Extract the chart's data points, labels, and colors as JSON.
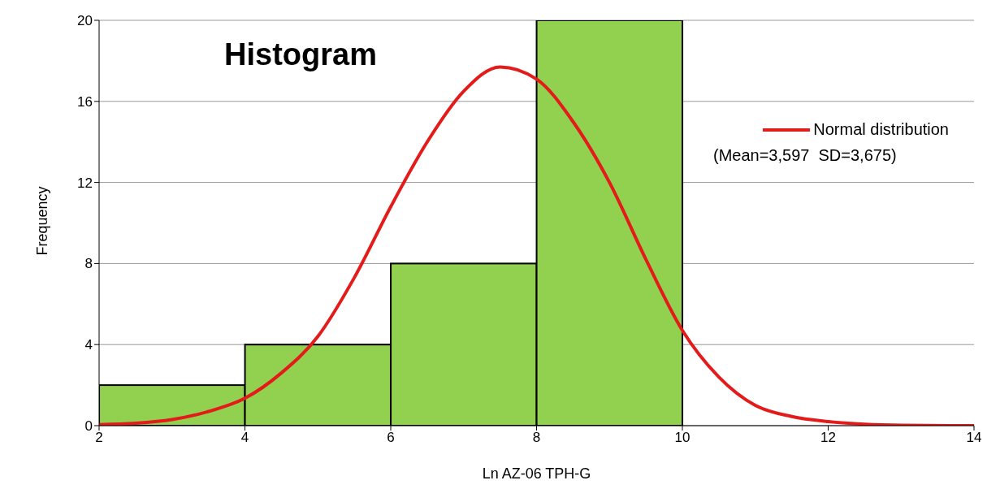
{
  "chart_data": {
    "type": "histogram",
    "title": "Histogram",
    "xlabel": "Ln AZ-06 TPH-G",
    "ylabel": "Frequency",
    "xlim": [
      2,
      14
    ],
    "xticks": [
      2,
      4,
      6,
      8,
      10,
      12,
      14
    ],
    "ylim": [
      0,
      20
    ],
    "yticks": [
      0,
      4,
      8,
      12,
      16,
      20
    ],
    "grid": "y",
    "legend": "top right",
    "marker": "none",
    "annotations": [
      "(Mean=3,597  SD=3,675)"
    ],
    "series": [
      {
        "bins": [
          2,
          4,
          6,
          8,
          10
        ],
        "values": [
          2,
          4,
          8,
          20
        ],
        "color": "#92d050"
      },
      {
        "type": "line",
        "name": "Normal distribution",
        "color": "#e31b1b",
        "x": [
          2,
          2.5,
          3,
          3.5,
          4,
          4.5,
          5,
          5.5,
          6,
          6.5,
          7,
          7.5,
          8,
          8.5,
          9,
          9.5,
          10,
          10.5,
          11,
          11.5,
          12,
          12.5,
          13,
          14
        ],
        "values": [
          0.05,
          0.12,
          0.3,
          0.7,
          1.35,
          2.6,
          4.4,
          7.3,
          10.8,
          14,
          16.5,
          17.7,
          17.1,
          15,
          12,
          8.2,
          4.7,
          2.4,
          1.0,
          0.45,
          0.2,
          0.07,
          0.02,
          0
        ]
      }
    ]
  }
}
